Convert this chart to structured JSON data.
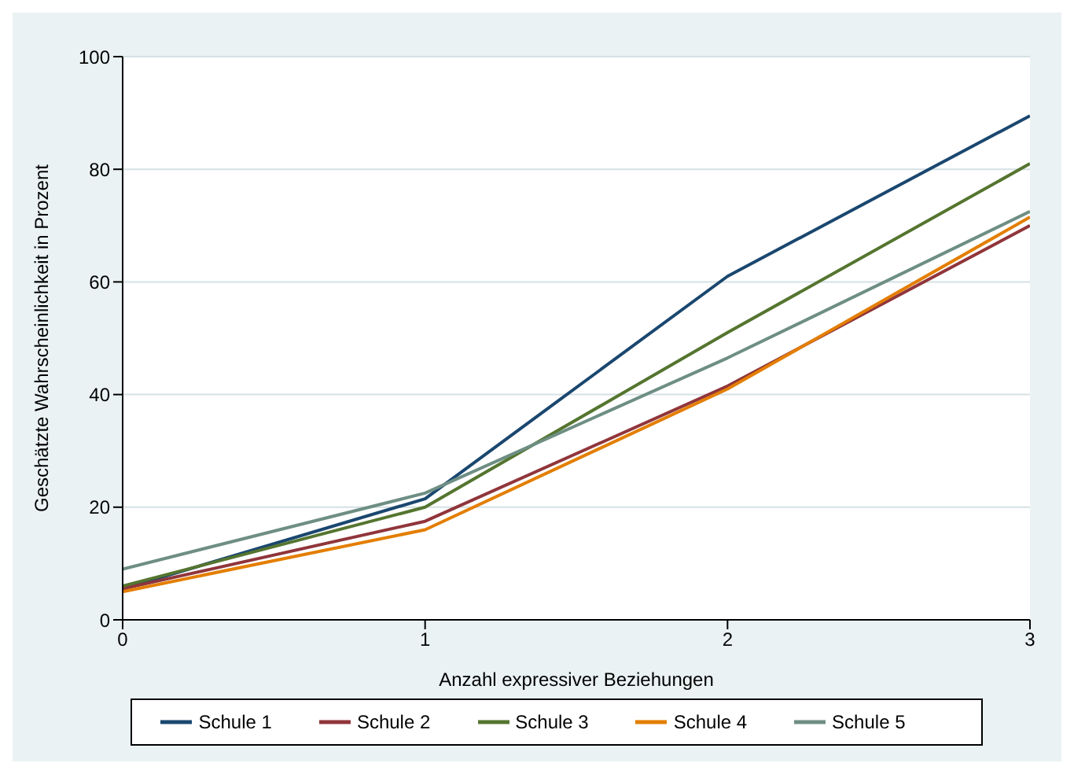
{
  "chart_data": {
    "type": "line",
    "xlabel": "Anzahl expressiver Beziehungen",
    "ylabel": "Geschätzte Wahrscheinlichkeit in Prozent",
    "x": [
      0,
      1,
      2,
      3
    ],
    "xlim": [
      0,
      3
    ],
    "xticks": [
      0,
      1,
      2,
      3
    ],
    "ylim": [
      0,
      100
    ],
    "yticks": [
      0,
      20,
      40,
      60,
      80,
      100
    ],
    "grid": "y",
    "legend": "bottom",
    "marker": "none",
    "line_style": "solid",
    "series": [
      {
        "name": "Schule 1",
        "color": "#1a476f",
        "values": [
          5.5,
          21.5,
          61,
          89.5
        ]
      },
      {
        "name": "Schule 2",
        "color": "#90353b",
        "values": [
          5.5,
          17.5,
          41.5,
          70
        ]
      },
      {
        "name": "Schule 3",
        "color": "#55752f",
        "values": [
          6,
          20,
          51,
          81
        ]
      },
      {
        "name": "Schule 4",
        "color": "#e37e00",
        "values": [
          5,
          16,
          41,
          71.5
        ]
      },
      {
        "name": "Schule 5",
        "color": "#6e8e84",
        "values": [
          9,
          22.5,
          46.5,
          72.5
        ]
      }
    ]
  }
}
